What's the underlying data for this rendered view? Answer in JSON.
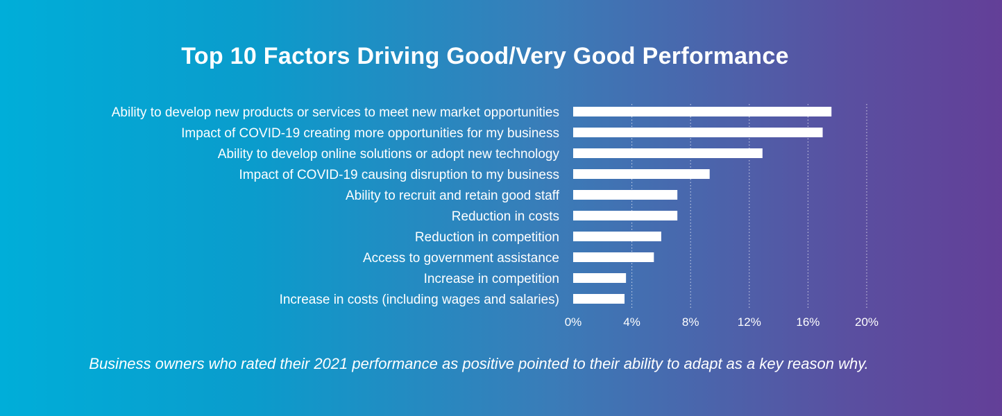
{
  "title": "Top 10 Factors Driving Good/Very Good Performance",
  "caption": "Business owners who rated their 2021 performance as positive pointed to their ability to adapt as a key reason why.",
  "chart_data": {
    "type": "bar",
    "orientation": "horizontal",
    "categories": [
      "Ability to develop new products or services to meet new market opportunities",
      "Impact of COVID-19 creating more opportunities for my business",
      "Ability to develop online solutions or adopt new technology",
      "Impact of COVID-19 causing disruption to my business",
      "Ability to recruit and retain good staff",
      "Reduction in costs",
      "Reduction in competition",
      "Access to government assistance",
      "Increase in competition",
      "Increase in costs (including wages and salaries)"
    ],
    "values": [
      17.6,
      17.0,
      12.9,
      9.3,
      7.1,
      7.1,
      6.0,
      5.5,
      3.6,
      3.5
    ],
    "xlim": [
      0,
      20
    ],
    "xticks": [
      0,
      4,
      8,
      12,
      16,
      20
    ],
    "xtick_labels": [
      "0%",
      "4%",
      "8%",
      "12%",
      "16%",
      "20%"
    ],
    "grid": "vertical dotted",
    "bar_color": "#ffffff"
  }
}
